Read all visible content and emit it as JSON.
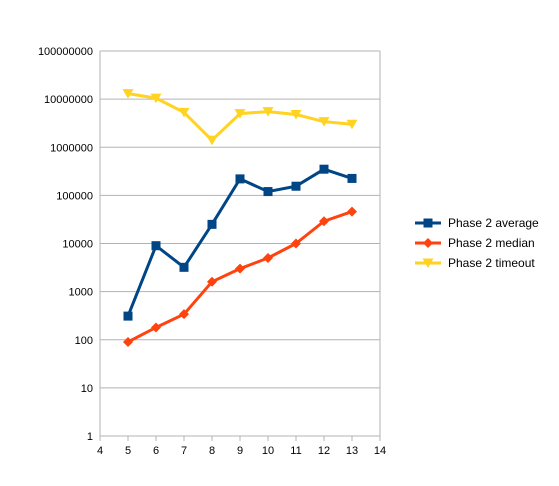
{
  "chart_data": {
    "type": "line",
    "title": "",
    "xlabel": "",
    "ylabel": "",
    "y_scale": "log",
    "xlim": [
      4,
      14
    ],
    "ylim": [
      1,
      100000000
    ],
    "x_ticks": [
      "4",
      "5",
      "6",
      "7",
      "8",
      "9",
      "10",
      "11",
      "12",
      "13",
      "14"
    ],
    "y_ticks": [
      "1",
      "10",
      "100",
      "1000",
      "10000",
      "100000",
      "1000000",
      "10000000",
      "100000000"
    ],
    "grid": "horizontal",
    "legend_position": "right",
    "x": [
      5,
      6,
      7,
      8,
      9,
      10,
      11,
      12,
      13
    ],
    "series": [
      {
        "name": "Phase 2 average",
        "color": "#004586",
        "marker": "square",
        "values": [
          310,
          9000,
          3200,
          25000,
          220000,
          120000,
          155000,
          350000,
          225000
        ]
      },
      {
        "name": "Phase 2 median",
        "color": "#ff420e",
        "marker": "diamond",
        "values": [
          90,
          180,
          340,
          1600,
          3000,
          5000,
          10000,
          29000,
          46000
        ]
      },
      {
        "name": "Phase 2 timeout",
        "color": "#ffd320",
        "marker": "triangle-down",
        "values": [
          13000000,
          10500000,
          5300000,
          1400000,
          5000000,
          5500000,
          4800000,
          3400000,
          3000000
        ]
      }
    ]
  }
}
